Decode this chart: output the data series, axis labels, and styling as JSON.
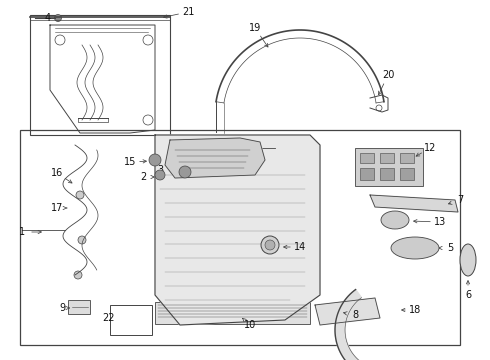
{
  "bg_color": "#ffffff",
  "line_color": "#444444",
  "text_color": "#111111",
  "fig_w": 4.9,
  "fig_h": 3.6,
  "dpi": 100
}
